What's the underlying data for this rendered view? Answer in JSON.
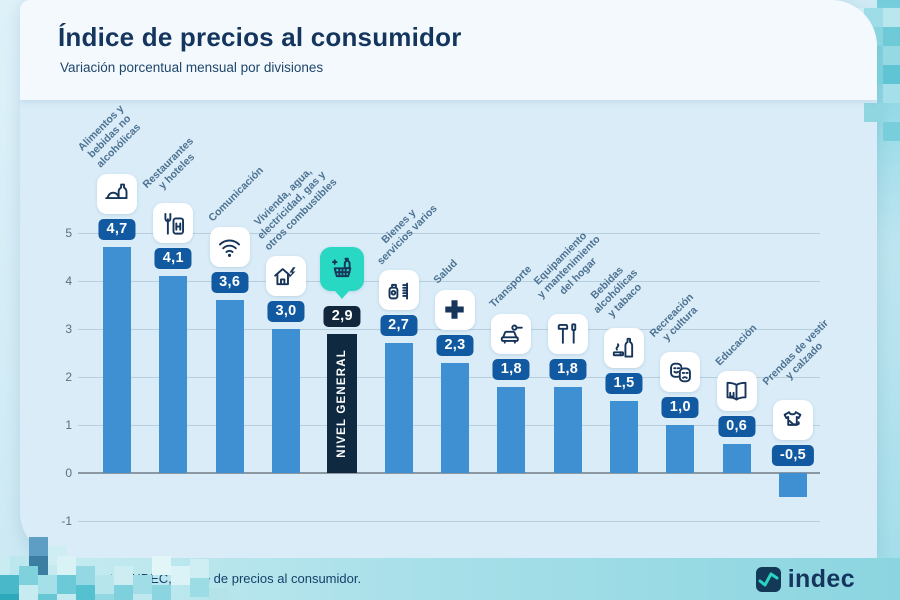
{
  "page": {
    "title": "Índice de precios al consumidor",
    "subtitle": "Variación porcentual mensual por divisiones"
  },
  "chart_data": {
    "type": "bar",
    "title": "Índice de precios al consumidor",
    "subtitle": "Variación porcentual mensual por divisiones",
    "unit": "%",
    "ylim": [
      -1,
      5
    ],
    "yticks": [
      5,
      4,
      3,
      2,
      1,
      0,
      -1
    ],
    "grid": true,
    "categories": [
      "Alimentos y bebidas no alcohólicas",
      "Restaurantes y hoteles",
      "Comunicación",
      "Vivienda, agua, electricidad, gas y otros combustibles",
      "Nivel general",
      "Bienes y servicios varios",
      "Salud",
      "Transporte",
      "Equipamiento y mantenimiento del hogar",
      "Bebidas alcohólicas y tabaco",
      "Recreación y cultura",
      "Educación",
      "Prendas de vestir y calzado"
    ],
    "values": [
      4.7,
      4.1,
      3.6,
      3.0,
      2.9,
      2.7,
      2.3,
      1.8,
      1.8,
      1.5,
      1.0,
      0.6,
      -0.5
    ],
    "highlight_category": "Nivel general",
    "legend": "none"
  },
  "bars": [
    {
      "slug": "alimentos",
      "label_lines": [
        "Alimentos y",
        "bebidas no",
        "alcohólicas"
      ],
      "value": 4.7,
      "display": "4,7",
      "icon": "food-drink-icon",
      "highlight": false
    },
    {
      "slug": "restaurantes",
      "label_lines": [
        "Restaurantes",
        "y hoteles"
      ],
      "value": 4.1,
      "display": "4,1",
      "icon": "restaurant-hotel-icon",
      "highlight": false
    },
    {
      "slug": "comunicacion",
      "label_lines": [
        "Comunicación"
      ],
      "value": 3.6,
      "display": "3,6",
      "icon": "wifi-icon",
      "highlight": false
    },
    {
      "slug": "vivienda",
      "label_lines": [
        "Vivienda, agua,",
        "electricidad, gas y",
        "otros combustibles"
      ],
      "value": 3.0,
      "display": "3,0",
      "icon": "housing-utilities-icon",
      "highlight": false
    },
    {
      "slug": "nivel-general",
      "label_lines": [],
      "bar_label": "NIVEL GENERAL",
      "value": 2.9,
      "display": "2,9",
      "icon": "shopping-basket-icon",
      "highlight": true
    },
    {
      "slug": "bienes-servicios",
      "label_lines": [
        "Bienes y",
        "servicios varios"
      ],
      "value": 2.7,
      "display": "2,7",
      "icon": "personal-care-icon",
      "highlight": false
    },
    {
      "slug": "salud",
      "label_lines": [
        "Salud"
      ],
      "value": 2.3,
      "display": "2,3",
      "icon": "health-cross-icon",
      "highlight": false
    },
    {
      "slug": "transporte",
      "label_lines": [
        "Transporte"
      ],
      "value": 1.8,
      "display": "1,8",
      "icon": "car-wrench-icon",
      "highlight": false
    },
    {
      "slug": "equipamiento",
      "label_lines": [
        "Equipamiento",
        "y mantenimiento",
        "del hogar"
      ],
      "value": 1.8,
      "display": "1,8",
      "icon": "tools-icon",
      "highlight": false
    },
    {
      "slug": "bebidas-tabaco",
      "label_lines": [
        "Bebidas",
        "alcohólicas",
        "y tabaco"
      ],
      "value": 1.5,
      "display": "1,5",
      "icon": "bottle-smoke-icon",
      "highlight": false
    },
    {
      "slug": "recreacion",
      "label_lines": [
        "Recreación",
        "y cultura"
      ],
      "value": 1.0,
      "display": "1,0",
      "icon": "theater-masks-icon",
      "highlight": false
    },
    {
      "slug": "educacion",
      "label_lines": [
        "Educación"
      ],
      "value": 0.6,
      "display": "0,6",
      "icon": "open-book-icon",
      "highlight": false
    },
    {
      "slug": "prendas",
      "label_lines": [
        "Prendas de vestir",
        "y calzado"
      ],
      "value": -0.5,
      "display": "-0,5",
      "icon": "tshirt-shoe-icon",
      "highlight": false
    }
  ],
  "y_axis": {
    "ticks": [
      5,
      4,
      3,
      2,
      1,
      0,
      -1
    ]
  },
  "footer": {
    "source": "Fuente: INDEC, Índice de precios al consumidor.",
    "logo_text": "indec"
  },
  "colors": {
    "bar": "#3f90d3",
    "bar_highlight": "#0f2940",
    "badge": "#1159a0",
    "badge_highlight": "#13273c",
    "teal_icon": "#29d8c3",
    "icon_glyph": "#16355a",
    "title": "#14365e",
    "header_bg": "#f4f9fd",
    "chart_bg": "#d9ecf8",
    "grid": "#b7cedd",
    "axis": "#8b98a2"
  }
}
